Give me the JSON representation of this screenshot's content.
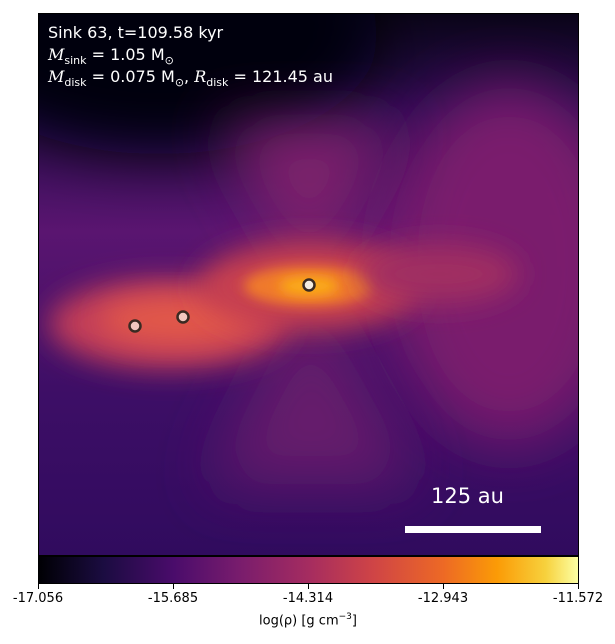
{
  "annotation": {
    "line1": "Sink 63, t=109.58 kyr",
    "m_sink_symbol": "M",
    "m_sink_sub": "sink",
    "m_sink_value": " = 1.05 M",
    "sun_sub": "⊙",
    "m_disk_symbol": "M",
    "m_disk_sub": "disk",
    "m_disk_value": " = 0.075 M",
    "r_disk_symbol": "R",
    "r_disk_sub": "disk",
    "r_disk_value": " = 121.45 au"
  },
  "scalebar": {
    "label": "125 au"
  },
  "colorbar": {
    "ticks": [
      "-17.056",
      "-15.685",
      "-14.314",
      "-12.943",
      "-11.572"
    ],
    "label_main": "log(ρ) [g cm",
    "label_exp": "−3",
    "label_end": "]",
    "colors": [
      "#000004",
      "#4a0c6b",
      "#a52c60",
      "#ed6925",
      "#fcffa4"
    ]
  },
  "sinks": [
    {
      "name": "sink-central",
      "fill": "#f4ece0"
    },
    {
      "name": "sink-left-1",
      "fill": "#f2c8c0"
    },
    {
      "name": "sink-left-2",
      "fill": "#f2c8c0"
    }
  ]
}
